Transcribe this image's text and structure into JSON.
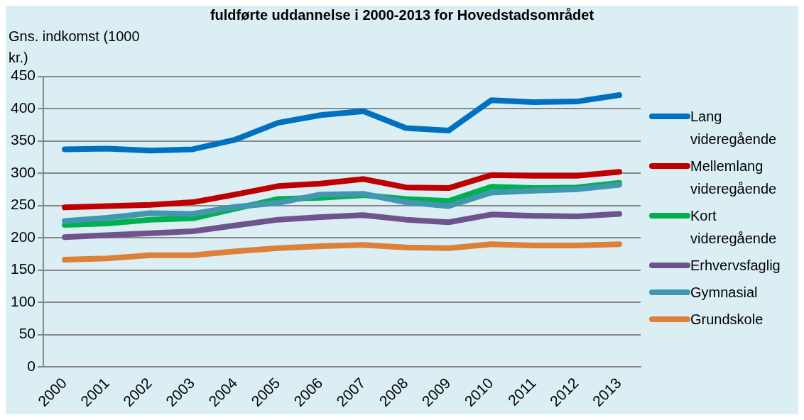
{
  "chart_data": {
    "type": "line",
    "title": "fuldførte uddannelse i 2000-2013 for Hovedstadsområdet",
    "ylabel": "Gns. indkomst (1000 kr.)",
    "categories": [
      "2000",
      "2001",
      "2002",
      "2003",
      "2004",
      "2005",
      "2006",
      "2007",
      "2008",
      "2009",
      "2010",
      "2011",
      "2012",
      "2013"
    ],
    "series": [
      {
        "name": "Lang videregående",
        "color": "#0070c0",
        "values": [
          337,
          338,
          335,
          337,
          352,
          378,
          390,
          396,
          370,
          366,
          413,
          410,
          411,
          421
        ]
      },
      {
        "name": "Mellemlang videregående",
        "color": "#c00000",
        "values": [
          247,
          249,
          251,
          255,
          267,
          280,
          284,
          291,
          278,
          277,
          297,
          296,
          296,
          302
        ]
      },
      {
        "name": "Kort videregående",
        "color": "#00b050",
        "values": [
          220,
          222,
          228,
          230,
          245,
          260,
          262,
          266,
          260,
          257,
          279,
          277,
          278,
          285
        ]
      },
      {
        "name": "Erhvervsfaglig",
        "color": "#6f538d",
        "values": [
          201,
          204,
          207,
          210,
          219,
          228,
          232,
          235,
          228,
          224,
          236,
          234,
          233,
          237
        ]
      },
      {
        "name": "Gymnasial",
        "color": "#4197b0",
        "values": [
          226,
          231,
          238,
          237,
          248,
          254,
          267,
          268,
          255,
          249,
          270,
          273,
          275,
          282
        ]
      },
      {
        "name": "Grundskole",
        "color": "#dd8038",
        "values": [
          166,
          168,
          173,
          173,
          179,
          184,
          187,
          189,
          185,
          184,
          190,
          188,
          188,
          190
        ]
      }
    ],
    "ylim": [
      0,
      450
    ],
    "yticks": [
      0,
      50,
      100,
      150,
      200,
      250,
      300,
      350,
      400,
      450
    ],
    "grid": "y",
    "legend": "right",
    "marker": "none",
    "line_style": "solid"
  }
}
